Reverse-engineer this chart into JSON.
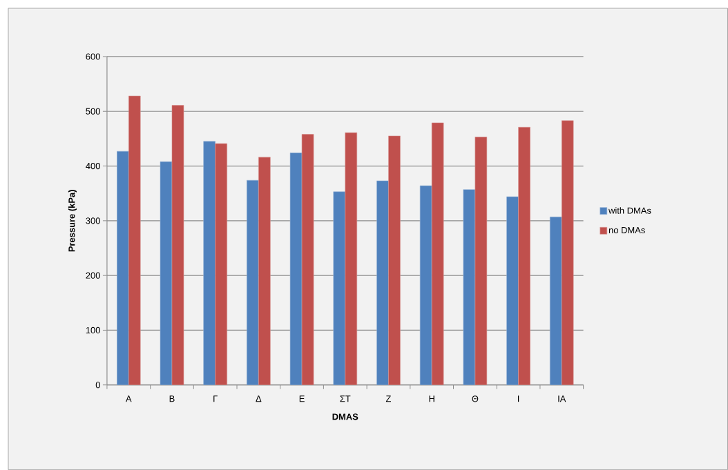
{
  "chart_data": {
    "type": "bar",
    "xlabel": "**DMAS**",
    "ylabel": "**Pressure (kPa)**",
    "categories": [
      "A",
      "B",
      "Γ",
      "Δ",
      "E",
      "ΣΤ",
      "Z",
      "H",
      "Θ",
      "I",
      "IA"
    ],
    "series": [
      {
        "name": "with DMAs",
        "color": "#4f81bd",
        "values": [
          427,
          408,
          445,
          374,
          424,
          353,
          373,
          364,
          357,
          344,
          307
        ]
      },
      {
        "name": "no DMAs",
        "color": "#c0504d",
        "values": [
          528,
          511,
          441,
          416,
          458,
          461,
          455,
          479,
          453,
          471,
          483
        ]
      }
    ],
    "ylim": [
      0,
      600
    ],
    "yticks": [
      0,
      100,
      200,
      300,
      400,
      500,
      600
    ],
    "grid": "y",
    "legend": "right"
  }
}
